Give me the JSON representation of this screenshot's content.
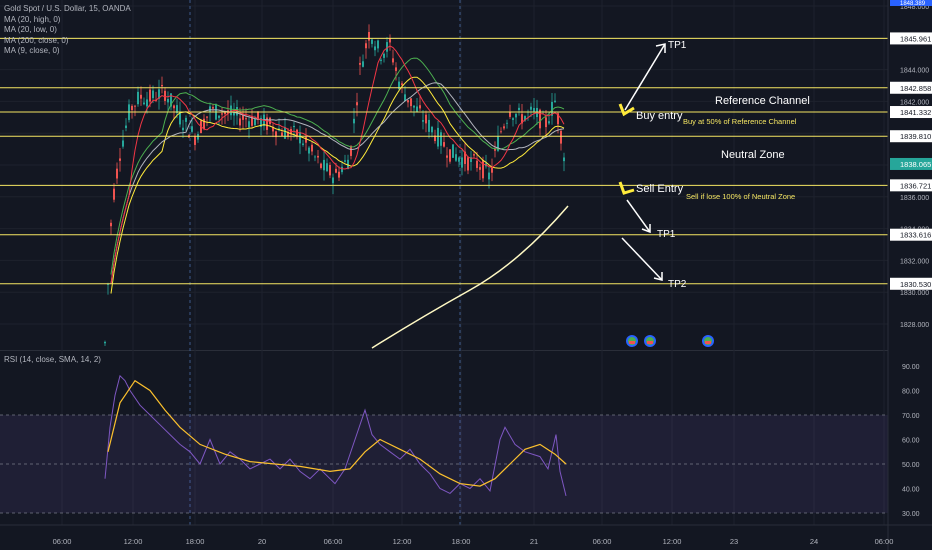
{
  "header": {
    "symbol_title": "Gold Spot / U.S. Dollar, 15, OANDA",
    "indicators": [
      "MA (20, high, 0)",
      "MA (20, low, 0)",
      "MA (200, close, 0)",
      "MA (9, close, 0)"
    ]
  },
  "rsi_panel": {
    "legend": "RSI (14, close, SMA, 14, 2)",
    "ticks": [
      "90.00",
      "80.00",
      "70.00",
      "60.00",
      "50.00",
      "40.00",
      "30.00"
    ]
  },
  "price_axis": {
    "ticks": [
      "1848.000",
      "1846.000",
      "1844.000",
      "1842.000",
      "1840.000",
      "1838.000",
      "1836.000",
      "1834.000",
      "1832.000",
      "1830.000",
      "1828.000"
    ],
    "top_label": "1848.389"
  },
  "levels": [
    {
      "price": 1845.961,
      "label": "1845.961"
    },
    {
      "price": 1842.858,
      "label": "1842.858"
    },
    {
      "price": 1841.332,
      "label": "1841.332"
    },
    {
      "price": 1839.81,
      "label": "1839.810"
    },
    {
      "price": 1836.721,
      "label": "1836.721"
    },
    {
      "price": 1833.616,
      "label": "1833.616"
    },
    {
      "price": 1830.53,
      "label": "1830.530"
    }
  ],
  "current_price": "1838.065",
  "time_axis": [
    "06:00",
    "12:00",
    "18:00",
    "20",
    "06:00",
    "12:00",
    "18:00",
    "21",
    "06:00",
    "12:00",
    "23",
    "24",
    "06:00"
  ],
  "annotations": {
    "tp1_top": "TP1",
    "buy_entry": "Buy entry",
    "buy_note": "Buy at 50% of Reference Channel",
    "reference_channel": "Reference Channel",
    "neutral_zone": "Neutral Zone",
    "sell_entry": "Sell Entry",
    "sell_note": "Sell if lose 100% of Neutral Zone",
    "tp1_bottom": "TP1",
    "tp2": "TP2"
  },
  "colors": {
    "background": "#131722",
    "level_line": "#f5e663",
    "candle_up": "#26a69a",
    "candle_down": "#ef5350",
    "ma_high": "#4caf50",
    "ma_low": "#ffeb3b",
    "ma_200": "#b2b5be",
    "ma_9": "#f23645",
    "rsi_line": "#7e57c2",
    "rsi_sma": "#fbc02d"
  }
}
